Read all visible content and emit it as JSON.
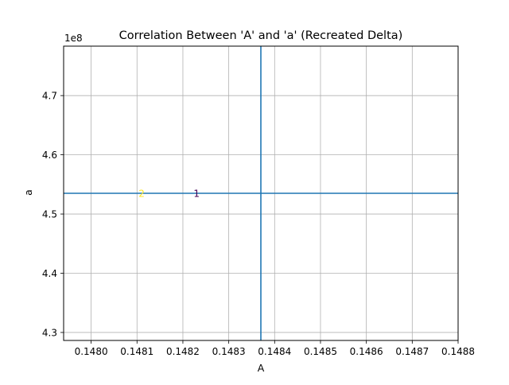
{
  "chart_data": {
    "type": "scatter",
    "title": "Correlation Between 'A' and 'a' (Recreated Delta)",
    "xlabel": "A",
    "ylabel": "a",
    "y_offset_label": "1e8",
    "xlim": [
      0.14794,
      0.1488
    ],
    "ylim": [
      4.2865,
      4.7835
    ],
    "x_ticks": [
      0.148,
      0.1481,
      0.1482,
      0.1483,
      0.1484,
      0.1485,
      0.1486,
      0.1487,
      0.1488
    ],
    "x_tick_labels": [
      "0.1480",
      "0.1481",
      "0.1482",
      "0.1483",
      "0.1484",
      "0.1485",
      "0.1486",
      "0.1487",
      "0.1488"
    ],
    "y_ticks": [
      4.3,
      4.4,
      4.5,
      4.6,
      4.7
    ],
    "y_tick_labels": [
      "4.3",
      "4.4",
      "4.5",
      "4.6",
      "4.7"
    ],
    "grid": true,
    "reference_lines": {
      "vertical_x": 0.14837,
      "horizontal_y": 4.535,
      "color": "#1f77b4"
    },
    "points": [
      {
        "label": "1",
        "x": 0.14823,
        "y": 4.535,
        "color": "#440154"
      },
      {
        "label": "2",
        "x": 0.14811,
        "y": 4.535,
        "color": "#fde725"
      }
    ]
  }
}
